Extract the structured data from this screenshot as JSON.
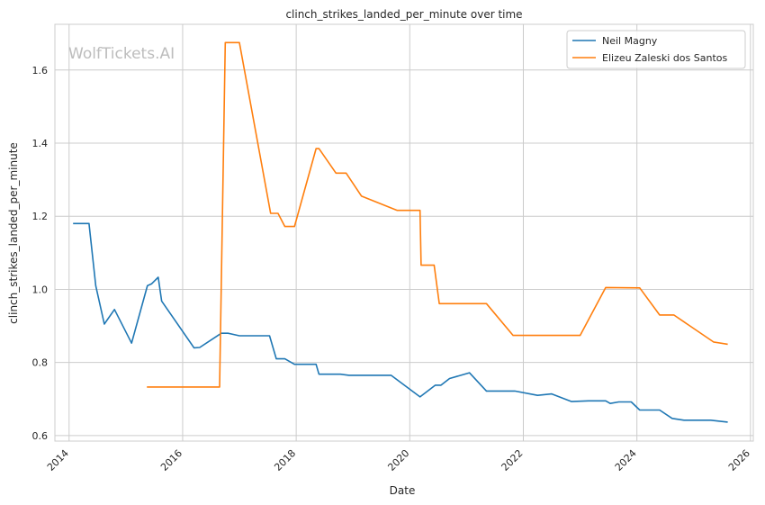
{
  "chart_data": {
    "type": "line",
    "title": "clinch_strikes_landed_per_minute over time",
    "xlabel": "Date",
    "ylabel": "clinch_strikes_landed_per_minute",
    "xlim": [
      2013.75,
      2026.05
    ],
    "ylim": [
      0.585,
      1.725
    ],
    "x_ticks": [
      2014,
      2016,
      2018,
      2020,
      2022,
      2024,
      2026
    ],
    "y_ticks": [
      0.6,
      0.8,
      1.0,
      1.2,
      1.4,
      1.6
    ],
    "y_tick_labels": [
      "0.6",
      "0.8",
      "1.0",
      "1.2",
      "1.4",
      "1.6"
    ],
    "grid": true,
    "legend_position": "top-right",
    "watermark": "WolfTickets.AI",
    "series": [
      {
        "name": "Neil Magny",
        "color": "#1f77b4",
        "points": [
          [
            2014.07,
            1.18
          ],
          [
            2014.35,
            1.18
          ],
          [
            2014.47,
            1.01
          ],
          [
            2014.62,
            0.905
          ],
          [
            2014.8,
            0.945
          ],
          [
            2015.1,
            0.853
          ],
          [
            2015.38,
            1.01
          ],
          [
            2015.45,
            1.015
          ],
          [
            2015.57,
            1.033
          ],
          [
            2015.63,
            0.968
          ],
          [
            2016.2,
            0.84
          ],
          [
            2016.3,
            0.841
          ],
          [
            2016.68,
            0.88
          ],
          [
            2016.8,
            0.88
          ],
          [
            2017.0,
            0.873
          ],
          [
            2017.53,
            0.873
          ],
          [
            2017.65,
            0.81
          ],
          [
            2017.8,
            0.81
          ],
          [
            2017.97,
            0.795
          ],
          [
            2018.35,
            0.795
          ],
          [
            2018.4,
            0.768
          ],
          [
            2018.78,
            0.768
          ],
          [
            2018.93,
            0.765
          ],
          [
            2019.3,
            0.765
          ],
          [
            2019.67,
            0.765
          ],
          [
            2020.18,
            0.706
          ],
          [
            2020.45,
            0.738
          ],
          [
            2020.55,
            0.738
          ],
          [
            2020.7,
            0.756
          ],
          [
            2021.05,
            0.772
          ],
          [
            2021.35,
            0.722
          ],
          [
            2021.85,
            0.722
          ],
          [
            2022.25,
            0.71
          ],
          [
            2022.5,
            0.714
          ],
          [
            2022.85,
            0.693
          ],
          [
            2023.15,
            0.695
          ],
          [
            2023.45,
            0.695
          ],
          [
            2023.53,
            0.688
          ],
          [
            2023.68,
            0.692
          ],
          [
            2023.9,
            0.692
          ],
          [
            2024.05,
            0.67
          ],
          [
            2024.4,
            0.67
          ],
          [
            2024.62,
            0.647
          ],
          [
            2024.83,
            0.642
          ],
          [
            2025.3,
            0.642
          ],
          [
            2025.6,
            0.637
          ]
        ]
      },
      {
        "name": "Elizeu Zaleski dos Santos",
        "color": "#ff7f0e",
        "points": [
          [
            2015.37,
            0.733
          ],
          [
            2016.65,
            0.733
          ],
          [
            2016.75,
            1.675
          ],
          [
            2017.0,
            1.675
          ],
          [
            2017.55,
            1.208
          ],
          [
            2017.68,
            1.208
          ],
          [
            2017.8,
            1.172
          ],
          [
            2017.97,
            1.172
          ],
          [
            2018.35,
            1.385
          ],
          [
            2018.4,
            1.385
          ],
          [
            2018.7,
            1.318
          ],
          [
            2018.88,
            1.318
          ],
          [
            2019.15,
            1.255
          ],
          [
            2019.78,
            1.216
          ],
          [
            2020.18,
            1.216
          ],
          [
            2020.2,
            1.066
          ],
          [
            2020.43,
            1.066
          ],
          [
            2020.52,
            0.961
          ],
          [
            2021.35,
            0.961
          ],
          [
            2021.82,
            0.874
          ],
          [
            2023.0,
            0.874
          ],
          [
            2023.45,
            1.005
          ],
          [
            2024.05,
            1.004
          ],
          [
            2024.4,
            0.93
          ],
          [
            2024.65,
            0.93
          ],
          [
            2025.35,
            0.856
          ],
          [
            2025.6,
            0.85
          ]
        ]
      }
    ]
  }
}
